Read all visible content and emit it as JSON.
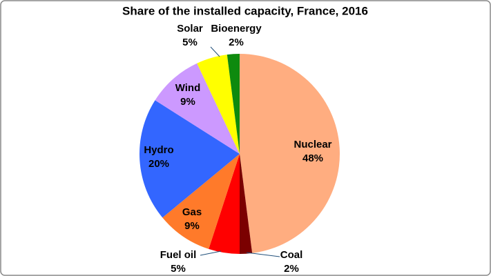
{
  "chart_data": {
    "type": "pie",
    "title": "Share of the installed capacity, France, 2016",
    "categories": [
      "Nuclear",
      "Coal",
      "Fuel oil",
      "Gas",
      "Hydro",
      "Wind",
      "Solar",
      "Bioenergy"
    ],
    "values": [
      48,
      2,
      5,
      9,
      20,
      9,
      5,
      2
    ],
    "value_labels": [
      "48%",
      "2%",
      "5%",
      "9%",
      "20%",
      "9%",
      "5%",
      "2%"
    ],
    "colors": [
      "#ffad80",
      "#7b0000",
      "#ff0000",
      "#ff7a2a",
      "#3366ff",
      "#cc99ff",
      "#ffff00",
      "#0e8a0e"
    ]
  }
}
